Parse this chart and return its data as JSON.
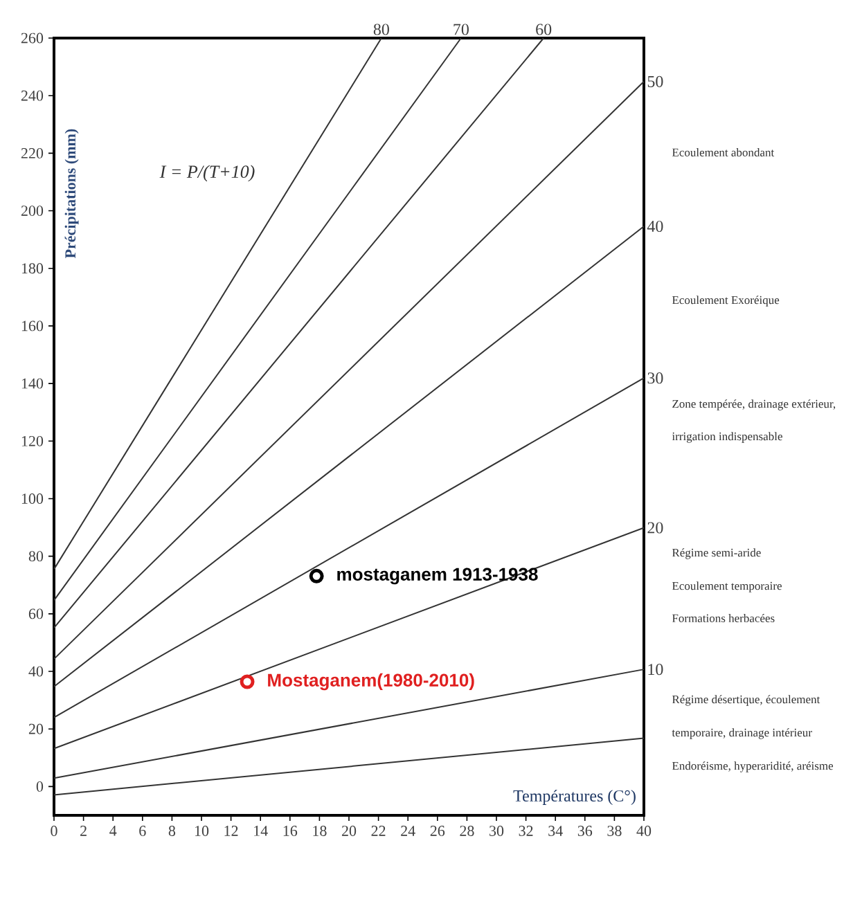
{
  "chart_data": {
    "type": "line",
    "xlabel": "Températures (C°)",
    "ylabel": "Précipitations (mm)",
    "xlim": [
      0,
      40
    ],
    "ylim": [
      -10,
      260
    ],
    "xticks": [
      0,
      2,
      4,
      6,
      8,
      10,
      12,
      14,
      16,
      18,
      20,
      22,
      24,
      26,
      28,
      30,
      32,
      34,
      36,
      38,
      40
    ],
    "yticks": [
      0,
      20,
      40,
      60,
      80,
      100,
      120,
      140,
      160,
      180,
      200,
      220,
      240,
      260
    ],
    "annotations": [
      "I = P/(T+10)",
      "Ecoulement abondant",
      "Ecoulement Exoréique",
      "Zone tempérée, drainage extérieur,",
      "irrigation indispensable",
      "Régime semi-aride",
      "Ecoulement temporaire",
      "Formations herbacées",
      "Régime désertique, écoulement",
      "temporaire, drainage intérieur",
      "Endoréisme, hyperaridité, aréisme"
    ],
    "series": [
      {
        "name": "80",
        "color": "#333333",
        "x": [
          0,
          22.2
        ],
        "values": [
          75.5,
          260
        ]
      },
      {
        "name": "70",
        "color": "#333333",
        "x": [
          0,
          27.6
        ],
        "values": [
          64.7,
          260
        ]
      },
      {
        "name": "60",
        "color": "#333333",
        "x": [
          0,
          33.2
        ],
        "values": [
          55.1,
          260
        ]
      },
      {
        "name": "50",
        "color": "#333333",
        "x": [
          0,
          40
        ],
        "values": [
          44.3,
          244.9
        ]
      },
      {
        "name": "40",
        "color": "#333333",
        "x": [
          0,
          40
        ],
        "values": [
          34.7,
          194.6
        ]
      },
      {
        "name": "30",
        "color": "#333333",
        "x": [
          0,
          40
        ],
        "values": [
          24.0,
          141.9
        ]
      },
      {
        "name": "20",
        "color": "#333333",
        "x": [
          0,
          40
        ],
        "values": [
          13.2,
          89.9
        ]
      },
      {
        "name": "10",
        "color": "#333333",
        "x": [
          0,
          40
        ],
        "values": [
          2.9,
          40.7
        ]
      },
      {
        "color": "#333333",
        "x": [
          0,
          40
        ],
        "values": [
          -2.9,
          16.8
        ]
      },
      {
        "type": "scatter",
        "marker": "circle",
        "name": "mostaganem 1913-1938",
        "color": "#000000",
        "x": [
          17.8
        ],
        "values": [
          73.1
        ]
      },
      {
        "type": "scatter",
        "marker": "circle",
        "name": "Mostaganem(1980-2010)",
        "color": "#e02020",
        "x": [
          13.1
        ],
        "values": [
          36.4
        ]
      }
    ]
  }
}
